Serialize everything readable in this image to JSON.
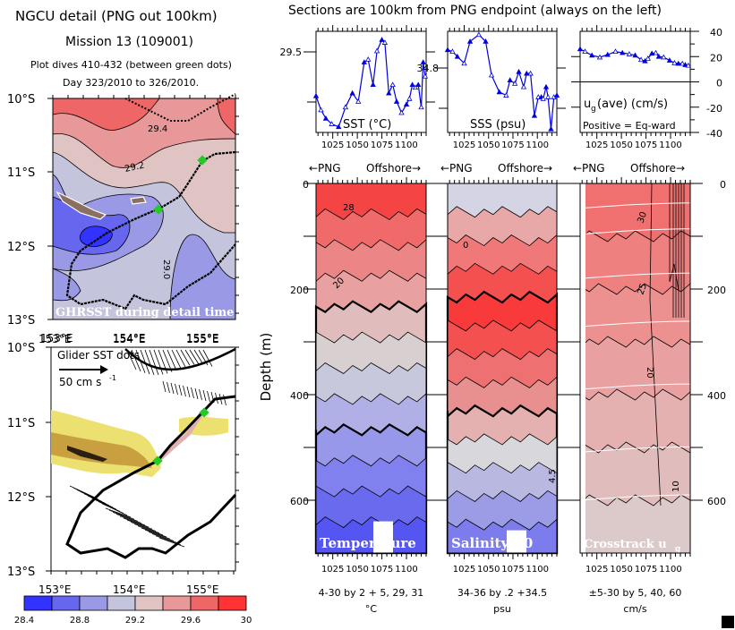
{
  "header": {
    "title": "NGCU detail (PNG out 100km)",
    "mission": "Mission 13 (109001)",
    "dives": "Plot dives 410-432 (between green dots)",
    "days": "Day 323/2010 to 326/2010.",
    "sections_title": "Sections are 100km from PNG endpoint (always on the left)"
  },
  "colors": {
    "track": "#0000dd",
    "green_dot": "#22cc22",
    "palette": [
      "#3333ff",
      "#6666ee",
      "#9999e6",
      "#c4c4dd",
      "#e0c4c4",
      "#e89898",
      "#ee6666",
      "#ff3333"
    ]
  },
  "map_sst": {
    "lat_labels": [
      "10°S",
      "11°S",
      "12°S",
      "13°S"
    ],
    "lon_labels": [
      "153°E",
      "154°E",
      "155°E"
    ],
    "contour_labels": [
      "29.4",
      "29.2",
      "29.0"
    ],
    "caption": "GHRSST during detail time"
  },
  "map_vel": {
    "lat_labels": [
      "10°S",
      "11°S",
      "12°S",
      "13°S"
    ],
    "lon_labels": [
      "153°E",
      "154°E",
      "155°E"
    ],
    "caption": "Glider SST dots",
    "scale_label": "50 cm s",
    "scale_exp": "-1"
  },
  "colorbar": {
    "ticks": [
      "28.4",
      "28.8",
      "29.2",
      "29.6",
      "30"
    ]
  },
  "direction": {
    "left": "←PNG",
    "right": "Offshore→"
  },
  "x_ticks": [
    "1025",
    "1050",
    "1075",
    "1100"
  ],
  "depth_axis": {
    "label": "Depth (m)",
    "ticks": [
      "0",
      "200",
      "400",
      "600"
    ]
  },
  "sections": [
    {
      "name": "temperature",
      "caption": "Temperature",
      "range": "4-30 by 2 + 5, 29, 31",
      "units": "°C",
      "contour_labels": [
        "28",
        "20",
        "8",
        "6"
      ]
    },
    {
      "name": "salinity",
      "caption": "Salinity-30",
      "range": "34-36 by .2 +34.5",
      "units": "psu",
      "contour_labels": [
        "0",
        "4.5",
        "4.5"
      ]
    },
    {
      "name": "crosstrack",
      "caption": "Crosstrack u",
      "caption_sub": "g",
      "range": "±5-30 by 5, 40, 60",
      "units": "cm/s",
      "contour_labels": [
        "30",
        "25",
        "20",
        "20",
        "15",
        "27",
        "15",
        "10",
        "10",
        "5"
      ]
    }
  ],
  "chart_data": [
    {
      "type": "line",
      "title": "SST (°C)",
      "x": [
        1008,
        1013,
        1018,
        1024,
        1031,
        1038,
        1045,
        1051,
        1057,
        1061,
        1066,
        1070,
        1075,
        1078,
        1082,
        1086,
        1090,
        1095,
        1100,
        1103,
        1106,
        1109,
        1112,
        1115,
        1117,
        1119
      ],
      "values": [
        29.35,
        29.3,
        29.27,
        29.25,
        29.24,
        29.31,
        29.36,
        29.33,
        29.47,
        29.48,
        29.39,
        29.51,
        29.55,
        29.54,
        29.36,
        29.39,
        29.33,
        29.29,
        29.32,
        29.34,
        29.39,
        29.38,
        29.39,
        29.31,
        29.47,
        29.42
      ],
      "ylim": [
        29.22,
        29.58
      ],
      "ytick_labels": [
        "29.5"
      ],
      "xtick_labels": [
        "1025",
        "1050",
        "1075",
        "1100"
      ],
      "xlim": [
        1008,
        1120
      ]
    },
    {
      "type": "line",
      "title": "SSS (psu)",
      "x": [
        1008,
        1013,
        1018,
        1025,
        1031,
        1040,
        1047,
        1053,
        1061,
        1068,
        1072,
        1077,
        1081,
        1086,
        1089,
        1093,
        1097,
        1101,
        1104,
        1106,
        1109,
        1111,
        1114,
        1117,
        1120
      ],
      "values": [
        34.85,
        34.84,
        34.81,
        34.77,
        34.9,
        34.94,
        34.9,
        34.7,
        34.6,
        34.58,
        34.67,
        34.65,
        34.72,
        34.63,
        34.71,
        34.71,
        34.46,
        34.57,
        34.57,
        34.56,
        34.63,
        34.57,
        34.38,
        34.57,
        34.58
      ],
      "ylim": [
        34.36,
        34.96
      ],
      "ytick_labels": [
        "34.8"
      ],
      "xtick_labels": [
        "1025",
        "1050",
        "1075",
        "1100"
      ],
      "xlim": [
        1008,
        1120
      ]
    },
    {
      "type": "line",
      "title": "u_g(ave) (cm/s)",
      "subtitle": "Positive = Eq-ward",
      "x": [
        1008,
        1013,
        1020,
        1028,
        1036,
        1044,
        1051,
        1058,
        1064,
        1070,
        1074,
        1077,
        1081,
        1085,
        1088,
        1093,
        1099,
        1104,
        1108,
        1112,
        1115,
        1118
      ],
      "values": [
        26,
        24,
        21,
        19.5,
        21.5,
        24,
        23,
        22,
        21,
        17.5,
        16.5,
        18.5,
        22.5,
        23,
        20,
        19.5,
        17,
        15,
        14.5,
        14.5,
        13.5,
        13
      ],
      "ylim": [
        -40,
        40
      ],
      "ytick_labels": [
        "40",
        "20",
        "0",
        "-20",
        "-40"
      ],
      "xtick_labels": [
        "1025",
        "1050",
        "1075",
        "1100"
      ],
      "xlim": [
        1008,
        1120
      ]
    }
  ]
}
